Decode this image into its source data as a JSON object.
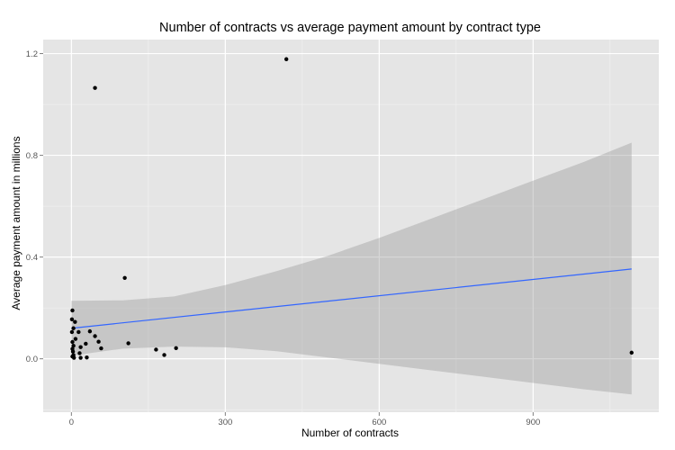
{
  "chart_data": {
    "type": "scatter",
    "title": "Number of contracts vs average payment amount by contract type",
    "xlabel": "Number of contracts",
    "ylabel": "Average payment amount in millions",
    "xlim": [
      -55,
      1145
    ],
    "ylim": [
      -0.21,
      1.255
    ],
    "x_ticks": [
      0,
      300,
      600,
      900
    ],
    "y_ticks": [
      0.0,
      0.4,
      0.8,
      1.2
    ],
    "x_tick_labels": [
      "0",
      "300",
      "600",
      "900"
    ],
    "y_tick_labels": [
      "0.0",
      "0.4",
      "0.8",
      "1.2"
    ],
    "grid": true,
    "colors": {
      "panel_background": "#e5e5e5",
      "grid_major": "#ffffff",
      "grid_minor": "#f2f2f2",
      "points": "#000000",
      "fit_line": "#3366ff",
      "confidence_band": "#999999"
    },
    "points": [
      {
        "x": 2,
        "y": 0.19
      },
      {
        "x": 1,
        "y": 0.155
      },
      {
        "x": 7,
        "y": 0.145
      },
      {
        "x": 4,
        "y": 0.12
      },
      {
        "x": 1,
        "y": 0.105
      },
      {
        "x": 14,
        "y": 0.105
      },
      {
        "x": 36,
        "y": 0.108
      },
      {
        "x": 46,
        "y": 0.089
      },
      {
        "x": 8,
        "y": 0.078
      },
      {
        "x": 2,
        "y": 0.066
      },
      {
        "x": 53,
        "y": 0.067
      },
      {
        "x": 28,
        "y": 0.059
      },
      {
        "x": 4,
        "y": 0.051
      },
      {
        "x": 18,
        "y": 0.046
      },
      {
        "x": 2,
        "y": 0.039
      },
      {
        "x": 58,
        "y": 0.041
      },
      {
        "x": 3,
        "y": 0.028
      },
      {
        "x": 16,
        "y": 0.022
      },
      {
        "x": 4,
        "y": 0.014
      },
      {
        "x": 2,
        "y": 0.009
      },
      {
        "x": 5,
        "y": 0.004
      },
      {
        "x": 18,
        "y": 0.004
      },
      {
        "x": 30,
        "y": 0.005
      },
      {
        "x": 46,
        "y": 1.065
      },
      {
        "x": 419,
        "y": 1.178
      },
      {
        "x": 104,
        "y": 0.318
      },
      {
        "x": 111,
        "y": 0.061
      },
      {
        "x": 165,
        "y": 0.036
      },
      {
        "x": 181,
        "y": 0.015
      },
      {
        "x": 204,
        "y": 0.042
      },
      {
        "x": 1092,
        "y": 0.024
      }
    ],
    "fit_line": {
      "x": [
        0,
        1092
      ],
      "y": [
        0.12,
        0.353
      ]
    },
    "confidence_band": {
      "x": [
        0,
        100,
        200,
        300,
        400,
        500,
        600,
        700,
        800,
        900,
        1000,
        1092
      ],
      "upper": [
        0.228,
        0.23,
        0.245,
        0.29,
        0.345,
        0.405,
        0.475,
        0.55,
        0.625,
        0.7,
        0.775,
        0.85
      ],
      "lower": [
        0.012,
        0.04,
        0.048,
        0.045,
        0.03,
        0.005,
        -0.02,
        -0.045,
        -0.07,
        -0.095,
        -0.12,
        -0.14
      ]
    }
  }
}
